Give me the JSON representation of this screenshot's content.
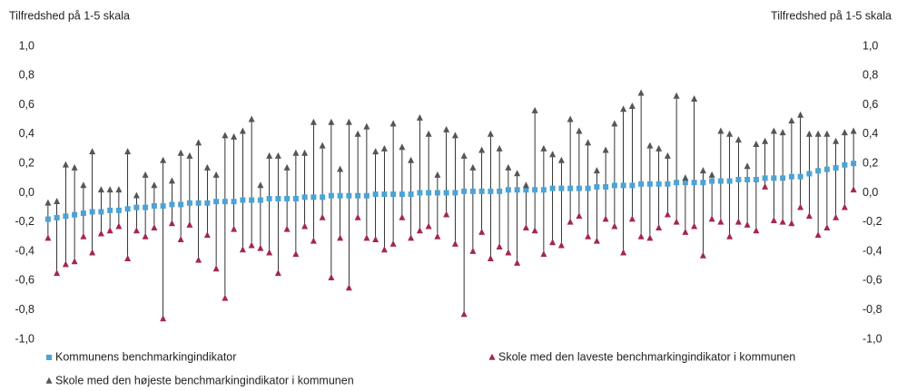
{
  "chart_data": {
    "type": "range-dot",
    "y_label": "Tilfredshed på 1-5 skala",
    "categories": [
      null,
      null,
      null,
      null,
      null,
      null,
      null,
      null,
      null,
      null,
      null,
      null,
      null,
      null,
      null,
      null,
      null,
      null,
      null,
      null,
      null,
      null,
      null,
      null,
      null,
      null,
      null,
      null,
      null,
      null,
      null,
      null,
      null,
      null,
      null,
      null,
      null,
      null,
      null,
      null,
      null,
      null,
      null,
      null,
      null,
      null,
      null,
      null,
      null,
      null,
      null,
      null,
      null,
      null,
      null,
      null,
      null,
      null,
      null,
      null,
      null,
      null,
      null,
      null,
      null,
      null,
      null,
      null,
      null,
      null,
      null,
      null,
      null,
      null,
      null,
      null,
      null,
      null,
      null,
      null,
      null,
      null,
      null,
      null,
      null,
      null,
      null,
      null,
      null,
      null,
      null,
      null
    ],
    "series": [
      {
        "name": "Kommunens benchmarkingindikator",
        "color": "#4ba3d6",
        "marker": "square",
        "values": [
          -0.18,
          -0.17,
          -0.16,
          -0.15,
          -0.14,
          -0.13,
          -0.13,
          -0.12,
          -0.12,
          -0.11,
          -0.1,
          -0.1,
          -0.09,
          -0.09,
          -0.08,
          -0.08,
          -0.07,
          -0.07,
          -0.07,
          -0.06,
          -0.06,
          -0.06,
          -0.05,
          -0.05,
          -0.05,
          -0.04,
          -0.04,
          -0.04,
          -0.04,
          -0.03,
          -0.03,
          -0.03,
          -0.02,
          -0.02,
          -0.02,
          -0.02,
          -0.02,
          -0.01,
          -0.01,
          -0.01,
          -0.01,
          -0.01,
          0.0,
          0.0,
          0.0,
          0.0,
          0.0,
          0.01,
          0.01,
          0.01,
          0.01,
          0.01,
          0.02,
          0.02,
          0.02,
          0.02,
          0.02,
          0.03,
          0.03,
          0.03,
          0.03,
          0.03,
          0.04,
          0.04,
          0.05,
          0.05,
          0.05,
          0.06,
          0.06,
          0.06,
          0.06,
          0.07,
          0.07,
          0.07,
          0.07,
          0.08,
          0.08,
          0.08,
          0.09,
          0.09,
          0.09,
          0.1,
          0.1,
          0.1,
          0.11,
          0.11,
          0.13,
          0.15,
          0.16,
          0.17,
          0.19,
          0.2
        ]
      },
      {
        "name": "Skole med den laveste benchmarkingindikator i kommunen",
        "color": "#a3284b",
        "marker": "triangle",
        "values": [
          -0.31,
          -0.55,
          -0.49,
          -0.47,
          -0.3,
          -0.41,
          -0.28,
          -0.26,
          -0.23,
          -0.45,
          -0.26,
          -0.3,
          -0.24,
          -0.86,
          -0.21,
          -0.32,
          -0.22,
          -0.46,
          -0.29,
          -0.52,
          -0.72,
          -0.25,
          -0.39,
          -0.36,
          -0.38,
          -0.41,
          -0.55,
          -0.25,
          -0.42,
          -0.23,
          -0.33,
          -0.17,
          -0.58,
          -0.31,
          -0.65,
          -0.17,
          -0.31,
          -0.32,
          -0.39,
          -0.35,
          -0.17,
          -0.31,
          -0.26,
          -0.23,
          -0.3,
          -0.15,
          -0.35,
          -0.83,
          -0.4,
          -0.27,
          -0.45,
          -0.37,
          -0.41,
          -0.48,
          -0.24,
          -0.26,
          -0.42,
          -0.34,
          -0.36,
          -0.2,
          -0.16,
          -0.3,
          -0.33,
          -0.18,
          -0.23,
          -0.41,
          -0.18,
          -0.3,
          -0.31,
          -0.24,
          -0.15,
          -0.2,
          -0.27,
          -0.23,
          -0.43,
          -0.18,
          -0.2,
          -0.3,
          -0.2,
          -0.22,
          -0.26,
          0.04,
          -0.19,
          -0.2,
          -0.21,
          -0.1,
          -0.16,
          -0.29,
          -0.24,
          -0.17,
          -0.1,
          0.02
        ]
      },
      {
        "name": "Skole med den højeste benchmarkingindikator i kommunen",
        "color": "#555555",
        "marker": "triangle",
        "values": [
          -0.07,
          -0.06,
          0.19,
          0.17,
          0.05,
          0.28,
          0.02,
          0.02,
          0.02,
          0.28,
          -0.02,
          0.12,
          0.05,
          0.22,
          0.08,
          0.27,
          0.25,
          0.34,
          0.17,
          0.12,
          0.39,
          0.38,
          0.42,
          0.5,
          0.05,
          0.25,
          0.25,
          0.17,
          0.27,
          0.27,
          0.48,
          0.32,
          0.48,
          0.16,
          0.48,
          0.4,
          0.45,
          0.28,
          0.3,
          0.47,
          0.31,
          0.22,
          0.51,
          0.4,
          0.12,
          0.43,
          0.39,
          0.25,
          0.17,
          0.29,
          0.4,
          0.3,
          0.17,
          0.13,
          0.05,
          0.56,
          0.3,
          0.26,
          0.22,
          0.5,
          0.42,
          0.34,
          0.15,
          0.29,
          0.47,
          0.57,
          0.59,
          0.68,
          0.32,
          0.3,
          0.25,
          0.66,
          0.1,
          0.64,
          0.15,
          0.12,
          0.42,
          0.4,
          0.36,
          0.18,
          0.33,
          0.35,
          0.42,
          0.41,
          0.49,
          0.53,
          0.4,
          0.4,
          0.4,
          0.35,
          0.41,
          0.42
        ]
      }
    ],
    "range_line_color": "#000000",
    "ylim": [
      -1.0,
      1.0
    ],
    "yticks": [
      {
        "value": 1.0,
        "label": "1,0"
      },
      {
        "value": 0.8,
        "label": "0,8"
      },
      {
        "value": 0.6,
        "label": "0,6"
      },
      {
        "value": 0.4,
        "label": "0,4"
      },
      {
        "value": 0.2,
        "label": "0,2"
      },
      {
        "value": 0.0,
        "label": "0,0"
      },
      {
        "value": -0.2,
        "label": "-0,2"
      },
      {
        "value": -0.4,
        "label": "-0,4"
      },
      {
        "value": -0.6,
        "label": "-0,6"
      },
      {
        "value": -0.8,
        "label": "-0,8"
      },
      {
        "value": -1.0,
        "label": "-1,0"
      }
    ],
    "grid": false,
    "legend": "bottom"
  }
}
